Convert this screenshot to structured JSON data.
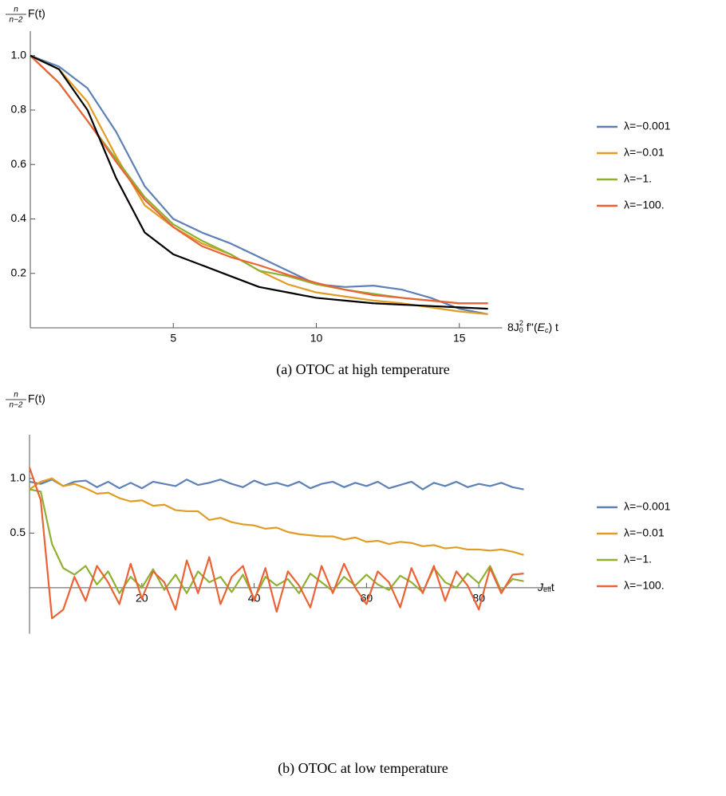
{
  "chart_data": [
    {
      "type": "line",
      "caption": "(a) OTOC at high temperature",
      "ylabel": [
        "n",
        "n−2",
        "F(t)"
      ],
      "xlabel": [
        "8J",
        "0",
        "2",
        " f''(",
        "E",
        "c",
        ") t"
      ],
      "x": [
        0,
        1,
        2,
        3,
        4,
        5,
        6,
        7,
        8,
        9,
        10,
        11,
        12,
        13,
        14,
        15,
        16
      ],
      "xlim": [
        0,
        16
      ],
      "ylim": [
        0,
        1.09
      ],
      "xticks": [
        5,
        10,
        15
      ],
      "yticks": [
        0.2,
        0.4,
        0.6,
        0.8,
        {
          "value": 1,
          "label": "1.0"
        }
      ],
      "legend": "right",
      "series": [
        {
          "name": "λ=−0.001",
          "color": "#5e81b5",
          "values": [
            1.0,
            0.96,
            0.88,
            0.72,
            0.52,
            0.4,
            0.35,
            0.31,
            0.26,
            0.21,
            0.16,
            0.15,
            0.155,
            0.14,
            0.11,
            0.07,
            0.05
          ]
        },
        {
          "name": "λ=−0.01",
          "color": "#e19c24",
          "values": [
            1.0,
            0.95,
            0.83,
            0.63,
            0.45,
            0.37,
            0.31,
            0.27,
            0.21,
            0.16,
            0.13,
            0.115,
            0.1,
            0.09,
            0.075,
            0.06,
            0.05
          ]
        },
        {
          "name": "λ=−1.",
          "color": "#8fb032",
          "values": [
            1.0,
            0.9,
            0.76,
            0.62,
            0.48,
            0.38,
            0.32,
            0.27,
            0.21,
            0.19,
            0.16,
            0.14,
            0.125,
            0.11,
            0.1,
            0.09,
            0.09
          ]
        },
        {
          "name": "λ=−100.",
          "color": "#eb6235",
          "values": [
            1.0,
            0.9,
            0.76,
            0.61,
            0.47,
            0.37,
            0.3,
            0.26,
            0.23,
            0.195,
            0.165,
            0.14,
            0.12,
            0.11,
            0.1,
            0.09,
            0.09
          ]
        },
        {
          "color": "#000000",
          "values": [
            1.0,
            0.95,
            0.8,
            0.55,
            0.35,
            0.27,
            0.23,
            0.19,
            0.15,
            0.13,
            0.11,
            0.1,
            0.09,
            0.085,
            0.08,
            0.075,
            0.07
          ]
        }
      ]
    },
    {
      "type": "line",
      "caption": "(b) OTOC at low temperature",
      "ylabel": [
        "n",
        "n−2",
        "F(t)"
      ],
      "xlabel": [
        "J",
        "eff",
        "t"
      ],
      "x": [
        0,
        2,
        4,
        6,
        8,
        10,
        12,
        14,
        16,
        18,
        20,
        22,
        24,
        26,
        28,
        30,
        32,
        34,
        36,
        38,
        40,
        42,
        44,
        46,
        48,
        50,
        52,
        54,
        56,
        58,
        60,
        62,
        64,
        66,
        68,
        70,
        72,
        74,
        76,
        78,
        80,
        82,
        84,
        86,
        88
      ],
      "xlim": [
        0,
        90
      ],
      "ylim": [
        -0.42,
        1.4
      ],
      "xticks": [
        20,
        40,
        60,
        80
      ],
      "yticks": [
        0.5,
        {
          "value": 1,
          "label": "1.0"
        }
      ],
      "legend": "right",
      "series": [
        {
          "name": "λ=−0.001",
          "color": "#5e81b5",
          "values": [
            0.97,
            0.95,
            0.99,
            0.93,
            0.97,
            0.98,
            0.92,
            0.97,
            0.91,
            0.96,
            0.91,
            0.97,
            0.95,
            0.93,
            0.99,
            0.94,
            0.96,
            0.99,
            0.95,
            0.92,
            0.98,
            0.94,
            0.96,
            0.93,
            0.97,
            0.91,
            0.95,
            0.97,
            0.92,
            0.96,
            0.93,
            0.97,
            0.91,
            0.94,
            0.97,
            0.9,
            0.96,
            0.93,
            0.97,
            0.92,
            0.95,
            0.93,
            0.96,
            0.92,
            0.9
          ]
        },
        {
          "name": "λ=−0.01",
          "color": "#e19c24",
          "values": [
            0.9,
            0.97,
            1.0,
            0.93,
            0.95,
            0.91,
            0.86,
            0.87,
            0.82,
            0.79,
            0.8,
            0.75,
            0.76,
            0.71,
            0.7,
            0.7,
            0.62,
            0.64,
            0.6,
            0.58,
            0.57,
            0.54,
            0.55,
            0.51,
            0.49,
            0.48,
            0.47,
            0.47,
            0.44,
            0.46,
            0.42,
            0.43,
            0.4,
            0.42,
            0.41,
            0.38,
            0.39,
            0.36,
            0.37,
            0.35,
            0.35,
            0.34,
            0.35,
            0.33,
            0.3
          ]
        },
        {
          "name": "λ=−1.",
          "color": "#8fb032",
          "values": [
            0.9,
            0.88,
            0.4,
            0.18,
            0.12,
            0.2,
            0.03,
            0.15,
            -0.05,
            0.1,
            0.0,
            0.17,
            -0.02,
            0.12,
            -0.05,
            0.15,
            0.05,
            0.1,
            -0.04,
            0.12,
            -0.1,
            0.1,
            0.02,
            0.08,
            -0.05,
            0.13,
            0.05,
            -0.03,
            0.1,
            0.02,
            0.12,
            0.03,
            -0.02,
            0.11,
            0.05,
            -0.04,
            0.18,
            0.05,
            0.0,
            0.13,
            0.04,
            0.2,
            -0.03,
            0.08,
            0.06
          ]
        },
        {
          "name": "λ=−100.",
          "color": "#eb6235",
          "values": [
            1.1,
            0.8,
            -0.28,
            -0.2,
            0.1,
            -0.12,
            0.2,
            0.05,
            -0.15,
            0.22,
            -0.1,
            0.15,
            0.05,
            -0.2,
            0.25,
            -0.05,
            0.28,
            -0.15,
            0.1,
            0.2,
            -0.12,
            0.18,
            -0.22,
            0.15,
            0.02,
            -0.18,
            0.2,
            -0.05,
            0.22,
            0.0,
            -0.15,
            0.15,
            0.05,
            -0.18,
            0.18,
            -0.05,
            0.2,
            -0.12,
            0.15,
            0.02,
            -0.2,
            0.18,
            -0.05,
            0.12,
            0.13
          ]
        }
      ]
    }
  ]
}
